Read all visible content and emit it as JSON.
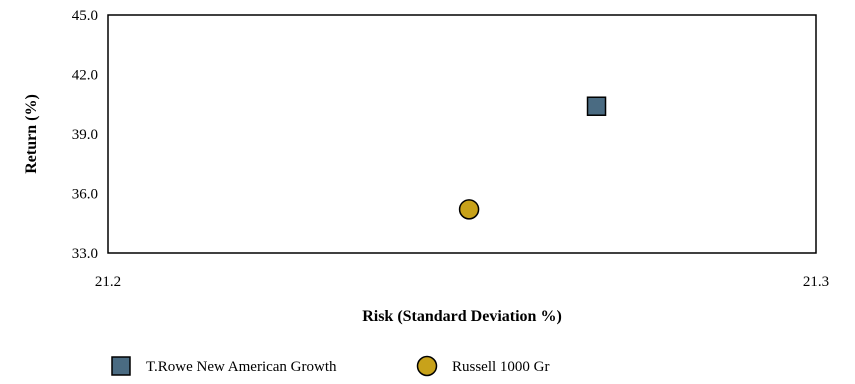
{
  "chart_data": {
    "type": "scatter",
    "title": "",
    "xlabel": "Risk (Standard Deviation %)",
    "ylabel": "Return (%)",
    "xlim": [
      21.2,
      21.3
    ],
    "ylim": [
      33.0,
      45.0
    ],
    "x_ticks": [
      "21.2",
      "21.3"
    ],
    "y_ticks": [
      "33.0",
      "36.0",
      "39.0",
      "42.0",
      "45.0"
    ],
    "grid": false,
    "legend_position": "bottom",
    "series": [
      {
        "name": "T.Rowe New American Growth",
        "marker": "square",
        "color": "#4a6b82",
        "points": [
          {
            "x": 21.269,
            "y": 40.4
          }
        ]
      },
      {
        "name": "Russell 1000 Gr",
        "marker": "circle",
        "color": "#c8a21a",
        "points": [
          {
            "x": 21.251,
            "y": 35.2
          }
        ]
      }
    ]
  }
}
